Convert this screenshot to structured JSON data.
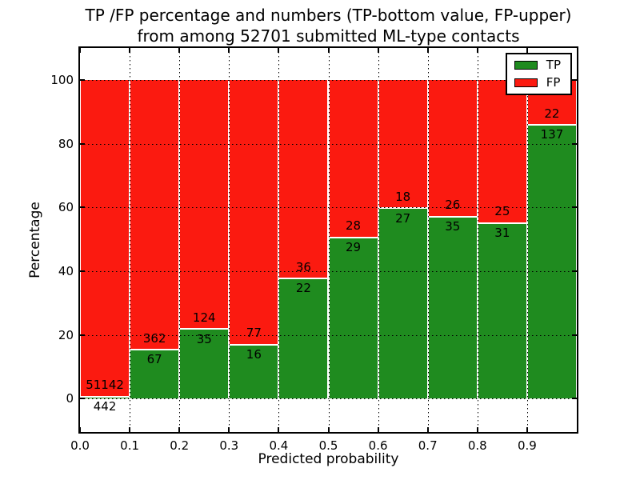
{
  "chart_data": {
    "type": "bar",
    "variant": "stacked-100-percent-histogram",
    "title_line1": "TP /FP percentage and numbers (TP-bottom value, FP-upper)",
    "title_line2": "from among 52701 submitted ML-type contacts",
    "xlabel": "Predicted probability",
    "ylabel": "Percentage",
    "total_submitted_contacts": 52701,
    "x_bin_edges": [
      0.0,
      0.1,
      0.2,
      0.3,
      0.4,
      0.5,
      0.6,
      0.7,
      0.8,
      0.9,
      1.0
    ],
    "x_tick_labels": [
      "0.0",
      "0.1",
      "0.2",
      "0.3",
      "0.4",
      "0.5",
      "0.6",
      "0.7",
      "0.8",
      "0.9"
    ],
    "y_ticks": [
      0,
      20,
      40,
      60,
      80,
      100
    ],
    "xlim": [
      0.0,
      1.0
    ],
    "ylim": [
      -10.5,
      110
    ],
    "grid": true,
    "grid_style": "dotted",
    "bar_edge_color": "#ffffff",
    "legend_position": "upper-right",
    "series": [
      {
        "name": "TP",
        "color": "#1f8b1f",
        "stack_position": "bottom",
        "counts": [
          442,
          67,
          35,
          16,
          22,
          29,
          27,
          35,
          31,
          137
        ]
      },
      {
        "name": "FP",
        "color": "#fb1a10",
        "stack_position": "top",
        "counts": [
          51142,
          362,
          124,
          77,
          36,
          28,
          18,
          26,
          25,
          22
        ]
      }
    ],
    "tp_percent_of_bin": [
      0.86,
      15.62,
      22.01,
      17.2,
      37.93,
      50.88,
      60.0,
      57.38,
      55.36,
      86.16
    ]
  }
}
